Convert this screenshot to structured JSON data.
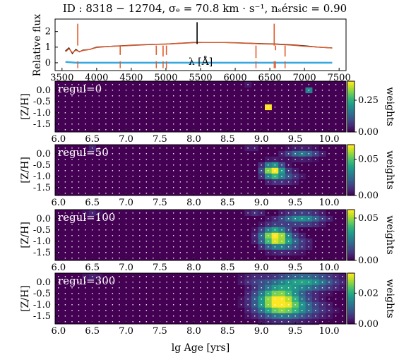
{
  "title": "ID : 8318 − 12704,   σₑ = 70.8 km · s⁻¹,   nₛérsic = 0.90",
  "chart_data": [
    {
      "type": "line",
      "ylabel": "Relative flux",
      "xlabel": "λ [Å]",
      "xlim": [
        3400,
        7600
      ],
      "ylim": [
        -0.5,
        2.8
      ],
      "xticks": [
        3500,
        4000,
        4500,
        5000,
        5500,
        6000,
        6500,
        7000,
        7500
      ],
      "yticks": [
        0,
        1,
        2
      ],
      "series": [
        {
          "color": "#000000",
          "style": "observed spectrum",
          "x": [
            3550,
            3600,
            3650,
            3700,
            3750,
            3800,
            3900,
            4000,
            4200,
            4500,
            4800,
            5000,
            5200,
            5400,
            5600,
            5800,
            6000,
            6200,
            6400,
            6600,
            6800,
            7000,
            7200,
            7400
          ],
          "y": [
            0.75,
            0.95,
            0.6,
            0.85,
            0.7,
            0.8,
            0.85,
            1.0,
            1.05,
            1.12,
            1.18,
            1.2,
            1.25,
            1.3,
            1.3,
            1.3,
            1.28,
            1.25,
            1.22,
            1.2,
            1.15,
            1.08,
            1.0,
            0.95
          ]
        },
        {
          "color": "#e05a2a",
          "style": "best fit",
          "x": [
            3550,
            3600,
            3650,
            3700,
            3750,
            3800,
            3900,
            4000,
            4200,
            4500,
            4800,
            5000,
            5200,
            5400,
            5600,
            5800,
            6000,
            6200,
            6400,
            6600,
            6800,
            7000,
            7200,
            7400
          ],
          "y": [
            0.7,
            0.9,
            0.65,
            0.8,
            0.72,
            0.78,
            0.85,
            0.98,
            1.05,
            1.1,
            1.17,
            1.2,
            1.24,
            1.28,
            1.3,
            1.3,
            1.27,
            1.24,
            1.21,
            1.18,
            1.13,
            1.06,
            1.0,
            0.94
          ]
        },
        {
          "color": "#3aa8e0",
          "style": "residuals",
          "x": [
            3550,
            3700,
            4000,
            4500,
            5000,
            5500,
            6000,
            6500,
            7000,
            7400
          ],
          "y": [
            0.05,
            0.0,
            0.0,
            0.0,
            0.0,
            0.0,
            0.0,
            0.0,
            0.0,
            0.0
          ]
        }
      ],
      "emission_lines": [
        {
          "x": 3727,
          "top": 2.5,
          "color": "#e05a2a"
        },
        {
          "x": 4340,
          "top": 0.5,
          "color": "#e05a2a"
        },
        {
          "x": 4861,
          "top": 0.5,
          "color": "#e05a2a"
        },
        {
          "x": 4959,
          "top": 0.4,
          "color": "#e05a2a"
        },
        {
          "x": 5007,
          "top": 0.5,
          "color": "#e05a2a"
        },
        {
          "x": 6300,
          "top": 0.3,
          "color": "#e05a2a"
        },
        {
          "x": 6563,
          "top": 2.5,
          "color": "#e05a2a"
        },
        {
          "x": 6583,
          "top": 0.8,
          "color": "#e05a2a"
        },
        {
          "x": 6720,
          "top": 0.4,
          "color": "#e05a2a"
        }
      ],
      "absorption_features": [
        {
          "x": 5450,
          "top": 2.6,
          "bottom": 1.2
        }
      ]
    },
    {
      "type": "heatmap",
      "label": "regul=0",
      "xlabel": "",
      "ylabel": "[Z/H]",
      "x_centers": [
        6.0,
        6.1,
        6.2,
        6.3,
        6.4,
        6.5,
        6.6,
        6.7,
        6.8,
        6.9,
        7.0,
        7.1,
        7.2,
        7.3,
        7.4,
        7.5,
        7.6,
        7.7,
        7.8,
        7.9,
        8.0,
        8.1,
        8.2,
        8.3,
        8.4,
        8.5,
        8.6,
        8.7,
        8.8,
        8.9,
        9.0,
        9.1,
        9.2,
        9.3,
        9.4,
        9.5,
        9.6,
        9.7,
        9.8,
        9.9,
        10.0,
        10.1,
        10.2
      ],
      "y_centers": [
        0.25,
        0.0,
        -0.25,
        -0.5,
        -0.75,
        -1.0,
        -1.25,
        -1.5,
        -1.75
      ],
      "xlim": [
        5.95,
        10.25
      ],
      "ylim": [
        -1.85,
        0.4
      ],
      "xticks": [
        6.0,
        6.5,
        7.0,
        7.5,
        8.0,
        8.5,
        9.0,
        9.5,
        10.0
      ],
      "yticks": [
        0.0,
        -0.5,
        -1.0,
        -1.5
      ],
      "cbar_max": 0.4,
      "cbar_ticks": [
        0.0,
        0.25
      ],
      "cbar_label": "weights",
      "blobs": [
        {
          "x": 9.1,
          "y": -0.75,
          "amp": 1.0,
          "sx": 0.01,
          "sy": 0.01
        },
        {
          "x": 9.7,
          "y": 0.0,
          "amp": 0.45,
          "sx": 0.01,
          "sy": 0.01
        },
        {
          "x": 9.45,
          "y": -0.25,
          "amp": 0.15,
          "sx": 0.01,
          "sy": 0.01
        },
        {
          "x": 8.8,
          "y": 0.25,
          "amp": 0.06,
          "sx": 0.01,
          "sy": 0.01
        },
        {
          "x": 9.15,
          "y": -1.25,
          "amp": 0.06,
          "sx": 0.01,
          "sy": 0.01
        }
      ]
    },
    {
      "type": "heatmap",
      "label": "regul=50",
      "xlabel": "",
      "ylabel": "[Z/H]",
      "x_centers": [
        6.0,
        6.1,
        6.2,
        6.3,
        6.4,
        6.5,
        6.6,
        6.7,
        6.8,
        6.9,
        7.0,
        7.1,
        7.2,
        7.3,
        7.4,
        7.5,
        7.6,
        7.7,
        7.8,
        7.9,
        8.0,
        8.1,
        8.2,
        8.3,
        8.4,
        8.5,
        8.6,
        8.7,
        8.8,
        8.9,
        9.0,
        9.1,
        9.2,
        9.3,
        9.4,
        9.5,
        9.6,
        9.7,
        9.8,
        9.9,
        10.0,
        10.1,
        10.2
      ],
      "y_centers": [
        0.25,
        0.0,
        -0.25,
        -0.5,
        -0.75,
        -1.0,
        -1.25,
        -1.5,
        -1.75
      ],
      "xlim": [
        5.95,
        10.25
      ],
      "ylim": [
        -1.85,
        0.4
      ],
      "xticks": [
        6.0,
        6.5,
        7.0,
        7.5,
        8.0,
        8.5,
        9.0,
        9.5,
        10.0
      ],
      "yticks": [
        0.0,
        -0.5,
        -1.0,
        -1.5
      ],
      "cbar_max": 0.07,
      "cbar_ticks": [
        0.0,
        0.05
      ],
      "cbar_label": "weights",
      "blobs": [
        {
          "x": 9.17,
          "y": -0.75,
          "amp": 1.0,
          "sx": 0.1,
          "sy": 0.22
        },
        {
          "x": 9.6,
          "y": 0.0,
          "amp": 0.4,
          "sx": 0.17,
          "sy": 0.14
        },
        {
          "x": 9.35,
          "y": -1.0,
          "amp": 0.25,
          "sx": 0.15,
          "sy": 0.2
        },
        {
          "x": 8.85,
          "y": 0.25,
          "amp": 0.12,
          "sx": 0.05,
          "sy": 0.05
        },
        {
          "x": 6.5,
          "y": 0.25,
          "amp": 0.1,
          "sx": 0.05,
          "sy": 0.05
        }
      ]
    },
    {
      "type": "heatmap",
      "label": "regul=100",
      "xlabel": "",
      "ylabel": "[Z/H]",
      "x_centers": [
        6.0,
        6.1,
        6.2,
        6.3,
        6.4,
        6.5,
        6.6,
        6.7,
        6.8,
        6.9,
        7.0,
        7.1,
        7.2,
        7.3,
        7.4,
        7.5,
        7.6,
        7.7,
        7.8,
        7.9,
        8.0,
        8.1,
        8.2,
        8.3,
        8.4,
        8.5,
        8.6,
        8.7,
        8.8,
        8.9,
        9.0,
        9.1,
        9.2,
        9.3,
        9.4,
        9.5,
        9.6,
        9.7,
        9.8,
        9.9,
        10.0,
        10.1,
        10.2
      ],
      "y_centers": [
        0.25,
        0.0,
        -0.25,
        -0.5,
        -0.75,
        -1.0,
        -1.25,
        -1.5,
        -1.75
      ],
      "xlim": [
        5.95,
        10.25
      ],
      "ylim": [
        -1.85,
        0.4
      ],
      "xticks": [
        6.0,
        6.5,
        7.0,
        7.5,
        8.0,
        8.5,
        9.0,
        9.5,
        10.0
      ],
      "yticks": [
        0.0,
        -0.5,
        -1.0,
        -1.5
      ],
      "cbar_max": 0.06,
      "cbar_ticks": [
        0.0,
        0.05
      ],
      "cbar_label": "weights",
      "blobs": [
        {
          "x": 9.2,
          "y": -0.8,
          "amp": 1.0,
          "sx": 0.14,
          "sy": 0.28
        },
        {
          "x": 9.6,
          "y": 0.0,
          "amp": 0.5,
          "sx": 0.22,
          "sy": 0.18
        },
        {
          "x": 9.4,
          "y": -1.1,
          "amp": 0.3,
          "sx": 0.2,
          "sy": 0.25
        },
        {
          "x": 8.9,
          "y": 0.2,
          "amp": 0.15,
          "sx": 0.1,
          "sy": 0.1
        },
        {
          "x": 6.5,
          "y": 0.25,
          "amp": 0.1,
          "sx": 0.08,
          "sy": 0.06
        }
      ]
    },
    {
      "type": "heatmap",
      "label": "regul=300",
      "xlabel": "lg Age [yrs]",
      "ylabel": "[Z/H]",
      "x_centers": [
        6.0,
        6.1,
        6.2,
        6.3,
        6.4,
        6.5,
        6.6,
        6.7,
        6.8,
        6.9,
        7.0,
        7.1,
        7.2,
        7.3,
        7.4,
        7.5,
        7.6,
        7.7,
        7.8,
        7.9,
        8.0,
        8.1,
        8.2,
        8.3,
        8.4,
        8.5,
        8.6,
        8.7,
        8.8,
        8.9,
        9.0,
        9.1,
        9.2,
        9.3,
        9.4,
        9.5,
        9.6,
        9.7,
        9.8,
        9.9,
        10.0,
        10.1,
        10.2
      ],
      "y_centers": [
        0.25,
        0.0,
        -0.25,
        -0.5,
        -0.75,
        -1.0,
        -1.25,
        -1.5,
        -1.75
      ],
      "xlim": [
        5.95,
        10.25
      ],
      "ylim": [
        -1.85,
        0.4
      ],
      "xticks": [
        6.0,
        6.5,
        7.0,
        7.5,
        8.0,
        8.5,
        9.0,
        9.5,
        10.0
      ],
      "yticks": [
        0.0,
        -0.5,
        -1.0,
        -1.5
      ],
      "cbar_max": 0.033,
      "cbar_ticks": [
        0.0,
        0.02
      ],
      "cbar_label": "weights",
      "blobs": [
        {
          "x": 9.25,
          "y": -0.8,
          "amp": 1.0,
          "sx": 0.22,
          "sy": 0.42
        },
        {
          "x": 9.65,
          "y": 0.0,
          "amp": 0.55,
          "sx": 0.3,
          "sy": 0.25
        },
        {
          "x": 9.5,
          "y": -1.2,
          "amp": 0.35,
          "sx": 0.3,
          "sy": 0.3
        },
        {
          "x": 8.9,
          "y": 0.1,
          "amp": 0.15,
          "sx": 0.15,
          "sy": 0.15
        },
        {
          "x": 6.5,
          "y": 0.2,
          "amp": 0.1,
          "sx": 0.1,
          "sy": 0.1
        }
      ]
    }
  ]
}
